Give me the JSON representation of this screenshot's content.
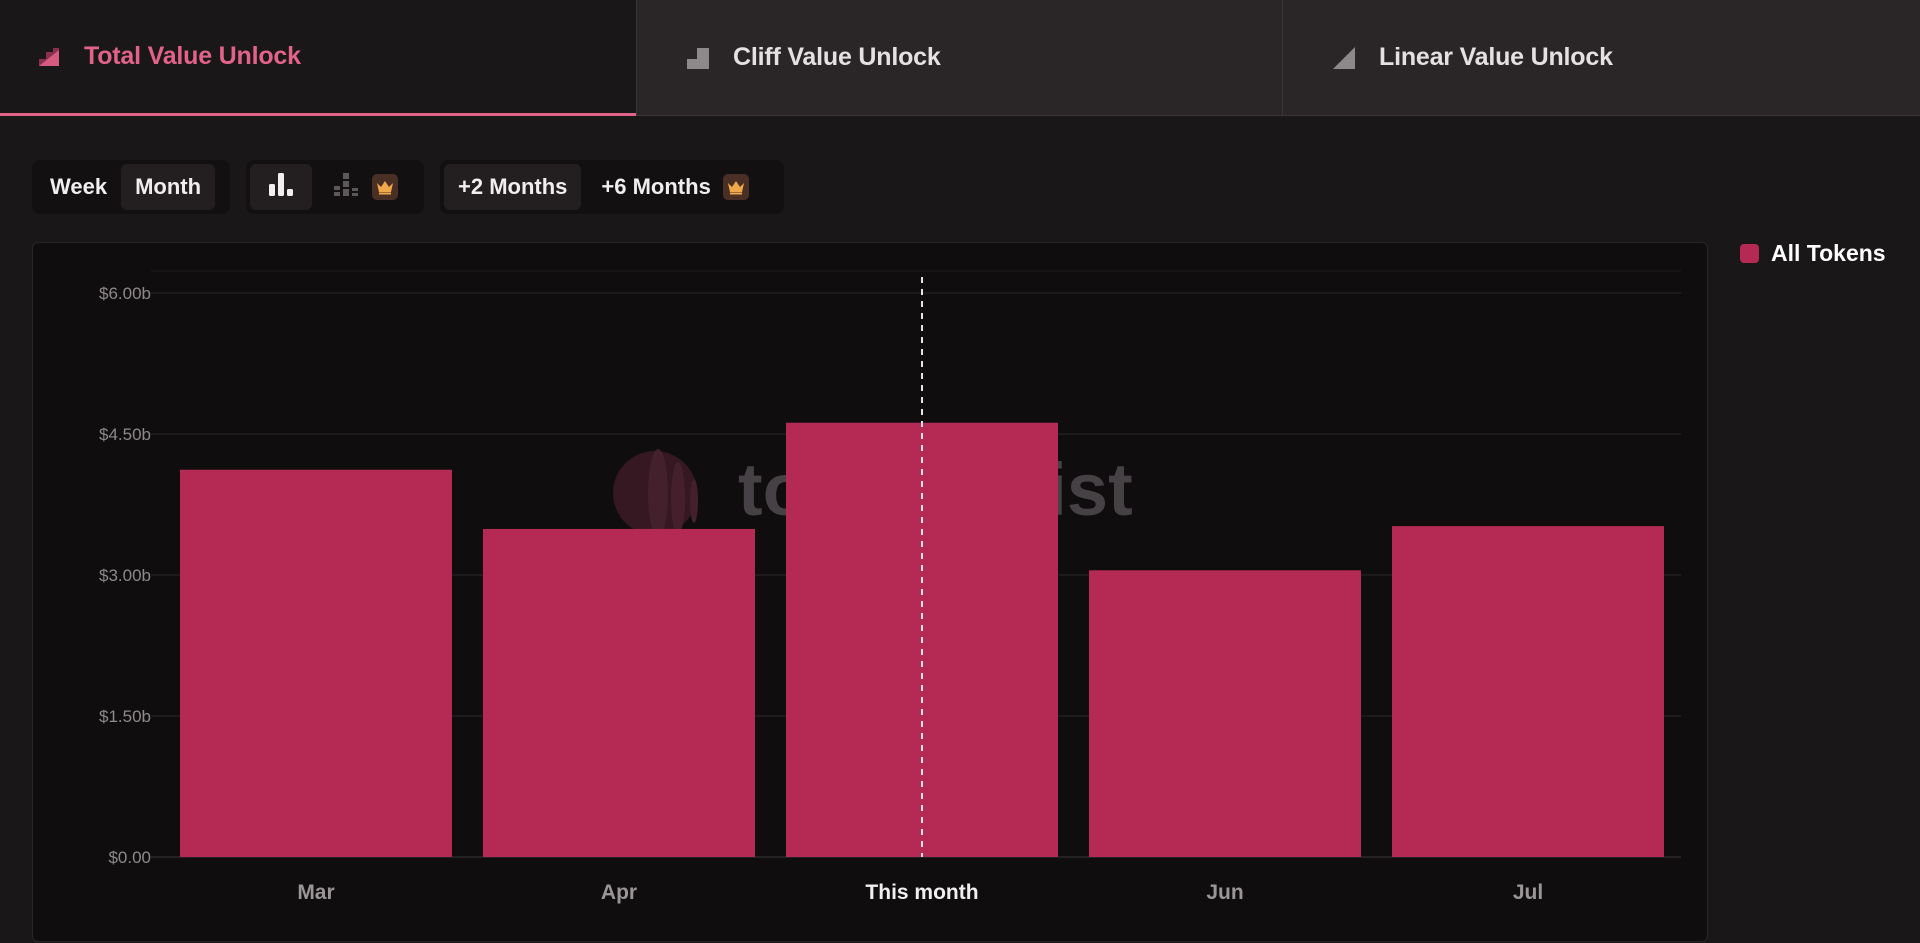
{
  "tabs": [
    {
      "label": "Total Value Unlock",
      "icon": "total-unlock-icon",
      "active": true
    },
    {
      "label": "Cliff Value Unlock",
      "icon": "cliff-unlock-icon",
      "active": false
    },
    {
      "label": "Linear Value Unlock",
      "icon": "linear-unlock-icon",
      "active": false
    }
  ],
  "controls": {
    "period": {
      "week": "Week",
      "month": "Month",
      "selected": "Month"
    },
    "chart_type": {
      "bar_icon": "bar-chart-icon",
      "stacked_icon": "stacked-chart-icon",
      "premium_icon": "crown-icon"
    },
    "range": {
      "plus2": "+2 Months",
      "plus6": "+6 Months",
      "premium_icon": "crown-icon"
    }
  },
  "legend": {
    "label": "All Tokens",
    "color": "#b52a55"
  },
  "watermark": {
    "text": "tokenomist"
  },
  "colors": {
    "accent": "#e2638a",
    "bar": "#b52a55",
    "crown": "#f0a94a"
  },
  "chart_data": {
    "type": "bar",
    "categories": [
      "Mar",
      "Apr",
      "This month",
      "Jun",
      "Jul"
    ],
    "values": [
      4.12,
      3.49,
      4.62,
      3.05,
      3.52
    ],
    "unit": "billion USD",
    "y_ticks": [
      "$0.00",
      "$1.50b",
      "$3.00b",
      "$4.50b",
      "$6.00b"
    ],
    "y_tick_values": [
      0,
      1.5,
      3,
      4.5,
      6
    ],
    "ylim": [
      0,
      6
    ],
    "current_category": "This month",
    "grid": true,
    "legend": "right"
  }
}
